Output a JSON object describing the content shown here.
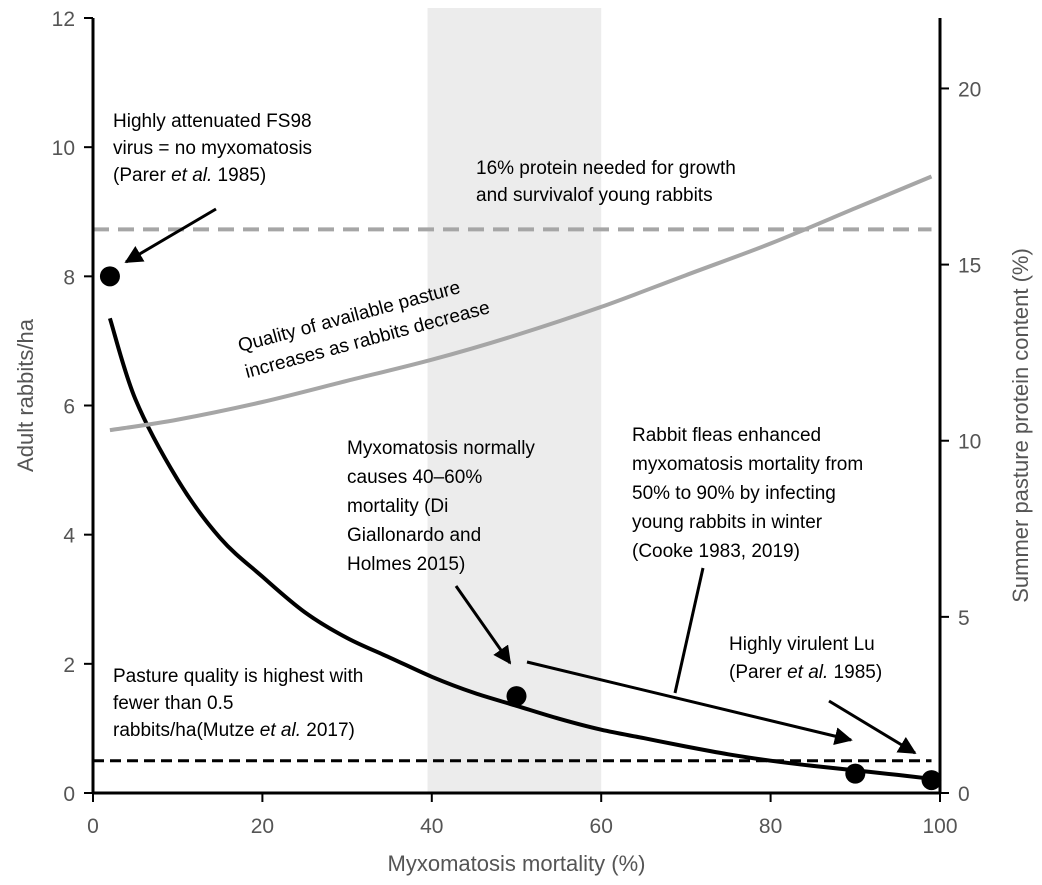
{
  "chart_data": {
    "type": "line",
    "xlabel": "Myxomatosis mortality (%)",
    "ylabel": "Adult rabbits/ha",
    "y2label": "Summer pasture protein content (%)",
    "xlim": [
      0,
      100
    ],
    "ylim": [
      0,
      12
    ],
    "y2lim": [
      0,
      22
    ],
    "x_ticks": [
      "0",
      "20",
      "40",
      "60",
      "80",
      "100"
    ],
    "y_ticks": [
      "0",
      "2",
      "4",
      "6",
      "8",
      "10",
      "12"
    ],
    "y2_ticks": [
      "0",
      "5",
      "10",
      "15",
      "20"
    ],
    "shaded_region": {
      "x": [
        39.5,
        60
      ]
    },
    "series": [
      {
        "axis": "left",
        "style": "solid-black",
        "x": [
          2,
          5,
          10,
          15,
          20,
          25,
          30,
          35,
          40,
          45,
          50,
          55,
          60,
          65,
          70,
          75,
          80,
          85,
          90,
          95,
          99
        ],
        "y": [
          7.35,
          6.1,
          4.85,
          3.95,
          3.35,
          2.8,
          2.4,
          2.1,
          1.8,
          1.55,
          1.35,
          1.15,
          0.98,
          0.85,
          0.72,
          0.6,
          0.5,
          0.42,
          0.35,
          0.28,
          0.22
        ]
      },
      {
        "axis": "right",
        "style": "solid-gray",
        "x": [
          2,
          10,
          20,
          30,
          40,
          50,
          60,
          70,
          80,
          90,
          99
        ],
        "y": [
          10.3,
          10.6,
          11.1,
          11.7,
          12.3,
          13.0,
          13.8,
          14.7,
          15.6,
          16.6,
          17.5
        ]
      },
      {
        "axis": "right",
        "style": "dashed-gray",
        "x": [
          0,
          99
        ],
        "y": [
          16,
          16
        ]
      },
      {
        "axis": "left",
        "style": "dashed-black",
        "x": [
          0,
          99
        ],
        "y": [
          0.5,
          0.5
        ]
      }
    ],
    "points": [
      {
        "x": 2,
        "y": 8
      },
      {
        "x": 50,
        "y": 1.5
      },
      {
        "x": 90,
        "y": 0.3
      },
      {
        "x": 99,
        "y": 0.2
      }
    ],
    "annotations": [
      {
        "lines": [
          "Highly attenuated FS98",
          "virus = no myxomatosis",
          "(Parer |et al.| 1985)"
        ]
      },
      {
        "lines": [
          "16% protein needed for growth",
          "and survivalof young rabbits"
        ]
      },
      {
        "lines": [
          "Quality of available pasture",
          "increases as rabbits decrease"
        ]
      },
      {
        "lines": [
          "Myxomatosis normally",
          "causes 40–60%",
          "mortality (Di",
          "Giallonardo and",
          "Holmes 2015)"
        ]
      },
      {
        "lines": [
          "Rabbit fleas enhanced",
          "myxomatosis mortality from",
          "50% to 90% by infecting",
          "young rabbits in winter",
          "(Cooke 1983, 2019)"
        ]
      },
      {
        "lines": [
          "Highly virulent Lu",
          "(Parer |et al.| 1985)"
        ]
      },
      {
        "lines": [
          "Pasture quality is highest with",
          "fewer than 0.5",
          "rabbits/ha(Mutze |et al.| 2017)"
        ]
      }
    ]
  },
  "colors": {
    "axis": "#000000",
    "text": "#555555",
    "curve": "#000000",
    "protein_curve": "#a6a6a6",
    "shade": "#ececec"
  }
}
